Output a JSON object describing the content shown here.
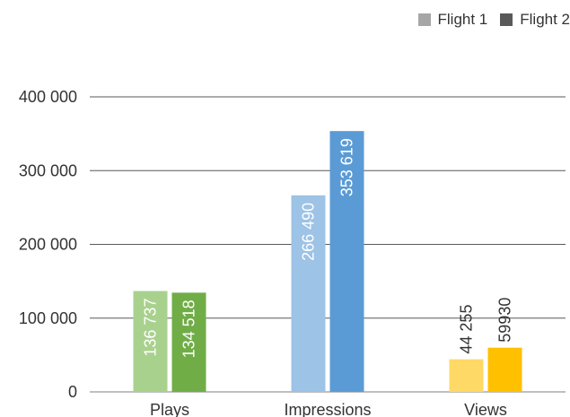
{
  "chart_data": {
    "type": "bar",
    "categories": [
      "Plays",
      "Impressions",
      "Views"
    ],
    "series": [
      {
        "name": "Flight 1",
        "values": [
          136737,
          266490,
          44255
        ],
        "colors": [
          "#a9d18e",
          "#9dc3e6",
          "#ffd966"
        ],
        "legend_color": "#a6a6a6"
      },
      {
        "name": "Flight 2",
        "values": [
          134518,
          353619,
          59930
        ],
        "colors": [
          "#70ad47",
          "#5b9bd5",
          "#ffc000"
        ],
        "legend_color": "#595959"
      }
    ],
    "data_labels": [
      [
        "136 737",
        "266 490",
        "44 255"
      ],
      [
        "134 518",
        "353 619",
        "59930"
      ]
    ],
    "label_colors": [
      [
        "#ffffff",
        "#ffffff",
        "#333333"
      ],
      [
        "#ffffff",
        "#ffffff",
        "#333333"
      ]
    ],
    "ylim": [
      0,
      400000
    ],
    "yticks": [
      0,
      100000,
      200000,
      300000,
      400000
    ],
    "ytick_labels": [
      "0",
      "100 000",
      "200 000",
      "300 000",
      "400 000"
    ],
    "grid": true,
    "legend_position": "top-right"
  }
}
